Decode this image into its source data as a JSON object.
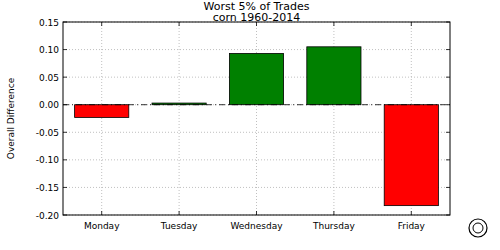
{
  "chart_data": {
    "type": "bar",
    "title": "Worst 5% of Trades",
    "subtitle": "corn 1960-2014",
    "y_label": "Overall Difference",
    "categories": [
      "Monday",
      "Tuesday",
      "Wednesday",
      "Thursday",
      "Friday"
    ],
    "values": [
      -0.023,
      0.003,
      0.093,
      0.105,
      -0.183
    ],
    "colors": [
      "#ff0000",
      "#008000",
      "#008000",
      "#008000",
      "#ff0000"
    ],
    "ylim": [
      -0.2,
      0.15
    ],
    "yticks": [
      {
        "value": -0.2,
        "label": "-0.20"
      },
      -0.15,
      {
        "value": -0.1,
        "label": "-0.10"
      },
      -0.05,
      {
        "value": 0,
        "label": "0.00"
      },
      0.05,
      {
        "value": 0.1,
        "label": "0.10"
      },
      0.15
    ],
    "grid": true
  }
}
